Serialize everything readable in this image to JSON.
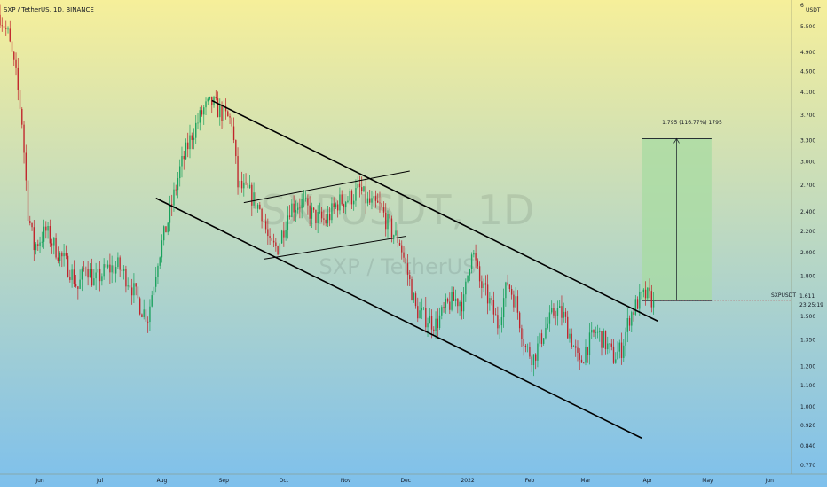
{
  "header": {
    "title": "SXP / TetherUS, 1D, BINANCE"
  },
  "watermark": {
    "symbol": "SXPUSDT, 1D",
    "name": "SXP / TetherUS"
  },
  "price_axis": {
    "unit": "USDT",
    "top_digit": "6",
    "last_symbol": "SXPUSDT",
    "last_price": "1.611",
    "countdown": "23:25:19"
  },
  "measurement": {
    "label": "1.795 (116.77%) 1795"
  },
  "colors": {
    "background_top": "#f6ef9a",
    "background_bottom": "#7ec0ec",
    "candle_up": "#18a15c",
    "candle_down": "#c0232a",
    "trend_line": "#000000",
    "target_zone": "#a7dba1"
  },
  "chart_data": {
    "type": "candlestick",
    "symbol": "SXPUSDT",
    "exchange": "BINANCE",
    "interval": "1D",
    "y_scale": "log",
    "ylim": [
      0.74,
      6.2
    ],
    "y_ticks": [
      "0.770",
      "0.840",
      "0.920",
      "1.000",
      "1.100",
      "1.200",
      "1.350",
      "1.500",
      "1.800",
      "2.000",
      "2.200",
      "2.400",
      "2.700",
      "3.000",
      "3.300",
      "3.700",
      "4.100",
      "4.500",
      "4.900",
      "5.500"
    ],
    "x_ticks": [
      "Jun",
      "Jul",
      "Aug",
      "Sep",
      "Oct",
      "Nov",
      "Dec",
      "2022",
      "Feb",
      "Mar",
      "Apr",
      "May",
      "Jun"
    ],
    "x_tick_dates": [
      "2021-06-01",
      "2021-07-01",
      "2021-08-01",
      "2021-09-01",
      "2021-10-01",
      "2021-11-01",
      "2021-12-01",
      "2022-01-01",
      "2022-02-01",
      "2022-03-01",
      "2022-04-01",
      "2022-05-01",
      "2022-06-01"
    ],
    "xlim": [
      "2021-05-12",
      "2022-06-12"
    ],
    "price_path": [
      [
        "2021-05-12",
        5.8
      ],
      [
        "2021-05-16",
        5.3
      ],
      [
        "2021-05-20",
        4.4
      ],
      [
        "2021-05-23",
        3.6
      ],
      [
        "2021-05-26",
        2.4
      ],
      [
        "2021-05-29",
        2.05
      ],
      [
        "2021-06-04",
        2.2
      ],
      [
        "2021-06-10",
        2.0
      ],
      [
        "2021-06-16",
        1.85
      ],
      [
        "2021-06-20",
        1.7
      ],
      [
        "2021-06-24",
        1.9
      ],
      [
        "2021-06-28",
        1.75
      ],
      [
        "2021-07-04",
        1.85
      ],
      [
        "2021-07-10",
        1.88
      ],
      [
        "2021-07-16",
        1.75
      ],
      [
        "2021-07-22",
        1.55
      ],
      [
        "2021-07-25",
        1.5
      ],
      [
        "2021-07-30",
        1.95
      ],
      [
        "2021-08-04",
        2.3
      ],
      [
        "2021-08-10",
        2.9
      ],
      [
        "2021-08-16",
        3.4
      ],
      [
        "2021-08-22",
        3.8
      ],
      [
        "2021-08-26",
        3.9
      ],
      [
        "2021-09-01",
        3.7
      ],
      [
        "2021-09-05",
        3.6
      ],
      [
        "2021-09-08",
        2.7
      ],
      [
        "2021-09-14",
        2.6
      ],
      [
        "2021-09-20",
        2.4
      ],
      [
        "2021-09-24",
        2.05
      ],
      [
        "2021-09-28",
        2.05
      ],
      [
        "2021-10-04",
        2.45
      ],
      [
        "2021-10-10",
        2.5
      ],
      [
        "2021-10-16",
        2.35
      ],
      [
        "2021-10-22",
        2.3
      ],
      [
        "2021-10-28",
        2.5
      ],
      [
        "2021-11-03",
        2.55
      ],
      [
        "2021-11-08",
        2.65
      ],
      [
        "2021-11-12",
        2.5
      ],
      [
        "2021-11-18",
        2.45
      ],
      [
        "2021-11-24",
        2.2
      ],
      [
        "2021-11-28",
        2.1
      ],
      [
        "2021-12-03",
        1.75
      ],
      [
        "2021-12-06",
        1.55
      ],
      [
        "2021-12-10",
        1.5
      ],
      [
        "2021-12-16",
        1.45
      ],
      [
        "2021-12-22",
        1.58
      ],
      [
        "2021-12-26",
        1.62
      ],
      [
        "2021-12-30",
        1.6
      ],
      [
        "2022-01-03",
        2.05
      ],
      [
        "2022-01-07",
        1.75
      ],
      [
        "2022-01-12",
        1.6
      ],
      [
        "2022-01-16",
        1.45
      ],
      [
        "2022-01-21",
        1.75
      ],
      [
        "2022-01-25",
        1.6
      ],
      [
        "2022-01-30",
        1.3
      ],
      [
        "2022-02-03",
        1.25
      ],
      [
        "2022-02-08",
        1.4
      ],
      [
        "2022-02-14",
        1.55
      ],
      [
        "2022-02-18",
        1.5
      ],
      [
        "2022-02-22",
        1.35
      ],
      [
        "2022-02-26",
        1.2
      ],
      [
        "2022-03-01",
        1.3
      ],
      [
        "2022-03-06",
        1.4
      ],
      [
        "2022-03-10",
        1.35
      ],
      [
        "2022-03-15",
        1.25
      ],
      [
        "2022-03-19",
        1.3
      ],
      [
        "2022-03-23",
        1.5
      ],
      [
        "2022-03-27",
        1.6
      ],
      [
        "2022-03-31",
        1.65
      ],
      [
        "2022-04-04",
        1.611
      ]
    ],
    "trendlines": [
      {
        "name": "channel upper",
        "from": [
          "2021-08-26",
          3.95
        ],
        "to": [
          "2022-04-06",
          1.47
        ]
      },
      {
        "name": "channel lower",
        "from": [
          "2021-07-29",
          2.55
        ],
        "to": [
          "2022-03-29",
          0.87
        ]
      },
      {
        "name": "range top",
        "from": [
          "2021-09-11",
          2.5
        ],
        "to": [
          "2021-12-03",
          2.88
        ]
      },
      {
        "name": "range bottom",
        "from": [
          "2021-09-21",
          1.94
        ],
        "to": [
          "2021-12-01",
          2.15
        ]
      }
    ],
    "target_zone": {
      "from": "2022-03-29",
      "to": "2022-05-03",
      "low": 1.611,
      "high": 3.33
    },
    "last_price": 1.611
  }
}
